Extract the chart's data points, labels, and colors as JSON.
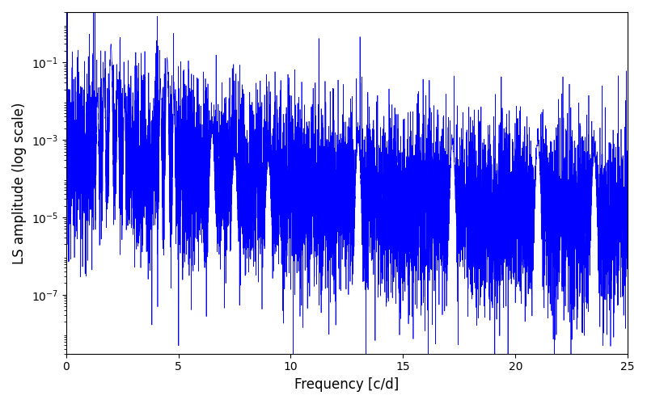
{
  "xlabel": "Frequency [c/d]",
  "ylabel": "LS amplitude (log scale)",
  "xlim": [
    0,
    25
  ],
  "ylim": [
    3e-09,
    2.0
  ],
  "yticks": [
    1e-07,
    1e-05,
    0.001,
    0.1
  ],
  "line_color": "#0000ff",
  "line_width": 0.5,
  "freq_max": 25.0,
  "n_points": 8000,
  "seed": 12345,
  "background_color": "#ffffff",
  "figsize": [
    8.0,
    5.0
  ],
  "dpi": 100
}
